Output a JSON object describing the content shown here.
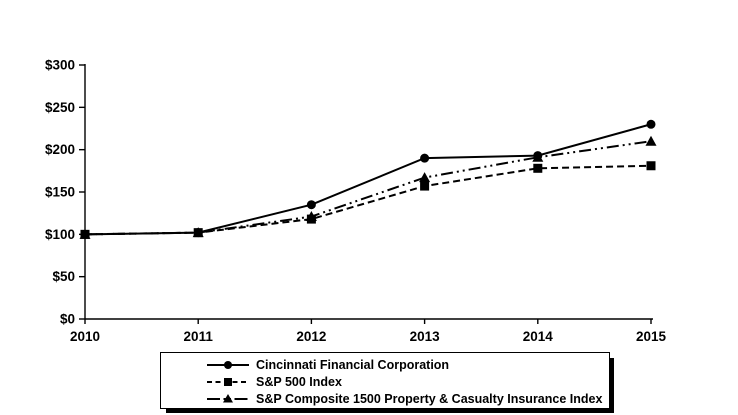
{
  "chart_data": {
    "type": "line",
    "title": "",
    "xlabel": "",
    "ylabel": "",
    "categories": [
      "2010",
      "2011",
      "2012",
      "2013",
      "2014",
      "2015"
    ],
    "series": [
      {
        "name": "Cincinnati Financial Corporation",
        "marker": "circle",
        "line_style": "solid",
        "values": [
          100,
          102,
          135,
          190,
          193,
          230
        ]
      },
      {
        "name": "S&P 500 Index",
        "marker": "square",
        "line_style": "dashed",
        "values": [
          100,
          102,
          118,
          157,
          178,
          181
        ]
      },
      {
        "name": "S&P Composite 1500 Property & Casualty Insurance Index",
        "marker": "triangle",
        "line_style": "dash-dot-dot",
        "values": [
          100,
          102,
          121,
          167,
          191,
          210
        ]
      }
    ],
    "y_ticks": [
      "$0",
      "$50",
      "$100",
      "$150",
      "$200",
      "$250",
      "$300"
    ],
    "y_tick_values": [
      0,
      50,
      100,
      150,
      200,
      250,
      300
    ],
    "ylim": [
      0,
      300
    ],
    "grid": false,
    "legend_position": "bottom",
    "line_color": "#000000",
    "background_color": "#ffffff"
  }
}
